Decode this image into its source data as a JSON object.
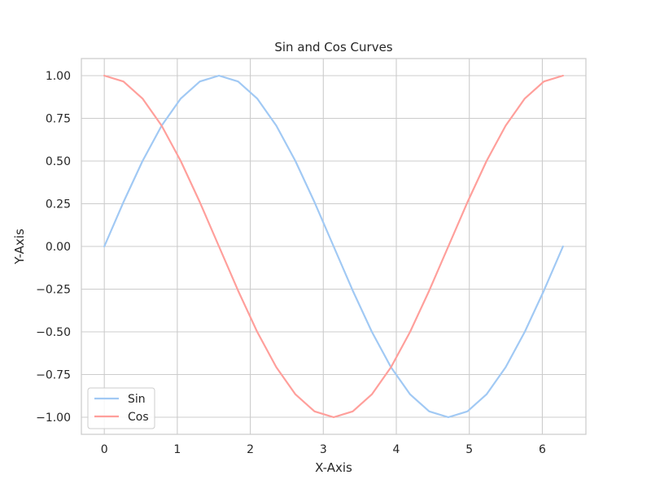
{
  "chart_data": {
    "type": "line",
    "title": "Sin and Cos Curves",
    "xlabel": "X-Axis",
    "ylabel": "Y-Axis",
    "xlim": [
      -0.314,
      6.597
    ],
    "ylim": [
      -1.1,
      1.1
    ],
    "x_ticks": [
      0,
      1,
      2,
      3,
      4,
      5,
      6
    ],
    "x_tick_labels": [
      "0",
      "1",
      "2",
      "3",
      "4",
      "5",
      "6"
    ],
    "y_ticks": [
      1.0,
      0.75,
      0.5,
      0.25,
      0.0,
      -0.25,
      -0.5,
      -0.75,
      -1.0
    ],
    "y_tick_labels": [
      "1.00",
      "0.75",
      "0.50",
      "0.25",
      "0.00",
      "−0.25",
      "−0.50",
      "−0.75",
      "−1.00"
    ],
    "grid": true,
    "legend_position": "lower-left",
    "x": [
      0,
      0.2618,
      0.5236,
      0.7854,
      1.0472,
      1.309,
      1.5708,
      1.8326,
      2.0944,
      2.3562,
      2.618,
      2.8798,
      3.1416,
      3.4034,
      3.6652,
      3.927,
      4.1888,
      4.4506,
      4.7124,
      4.9742,
      5.236,
      5.4978,
      5.7596,
      6.0214,
      6.2832
    ],
    "series": [
      {
        "name": "Sin",
        "color": "#a1c9f4",
        "values": [
          0,
          0.2588,
          0.5,
          0.7071,
          0.866,
          0.9659,
          1,
          0.9659,
          0.866,
          0.7071,
          0.5,
          0.2588,
          0,
          -0.2588,
          -0.5,
          -0.7071,
          -0.866,
          -0.9659,
          -1,
          -0.9659,
          -0.866,
          -0.7071,
          -0.5,
          -0.2588,
          0
        ]
      },
      {
        "name": "Cos",
        "color": "#ff9f9b",
        "values": [
          1,
          0.9659,
          0.866,
          0.7071,
          0.5,
          0.2588,
          0,
          -0.2588,
          -0.5,
          -0.7071,
          -0.866,
          -0.9659,
          -1,
          -0.9659,
          -0.866,
          -0.7071,
          -0.5,
          -0.2588,
          0,
          0.2588,
          0.5,
          0.7071,
          0.866,
          0.9659,
          1
        ]
      }
    ]
  }
}
